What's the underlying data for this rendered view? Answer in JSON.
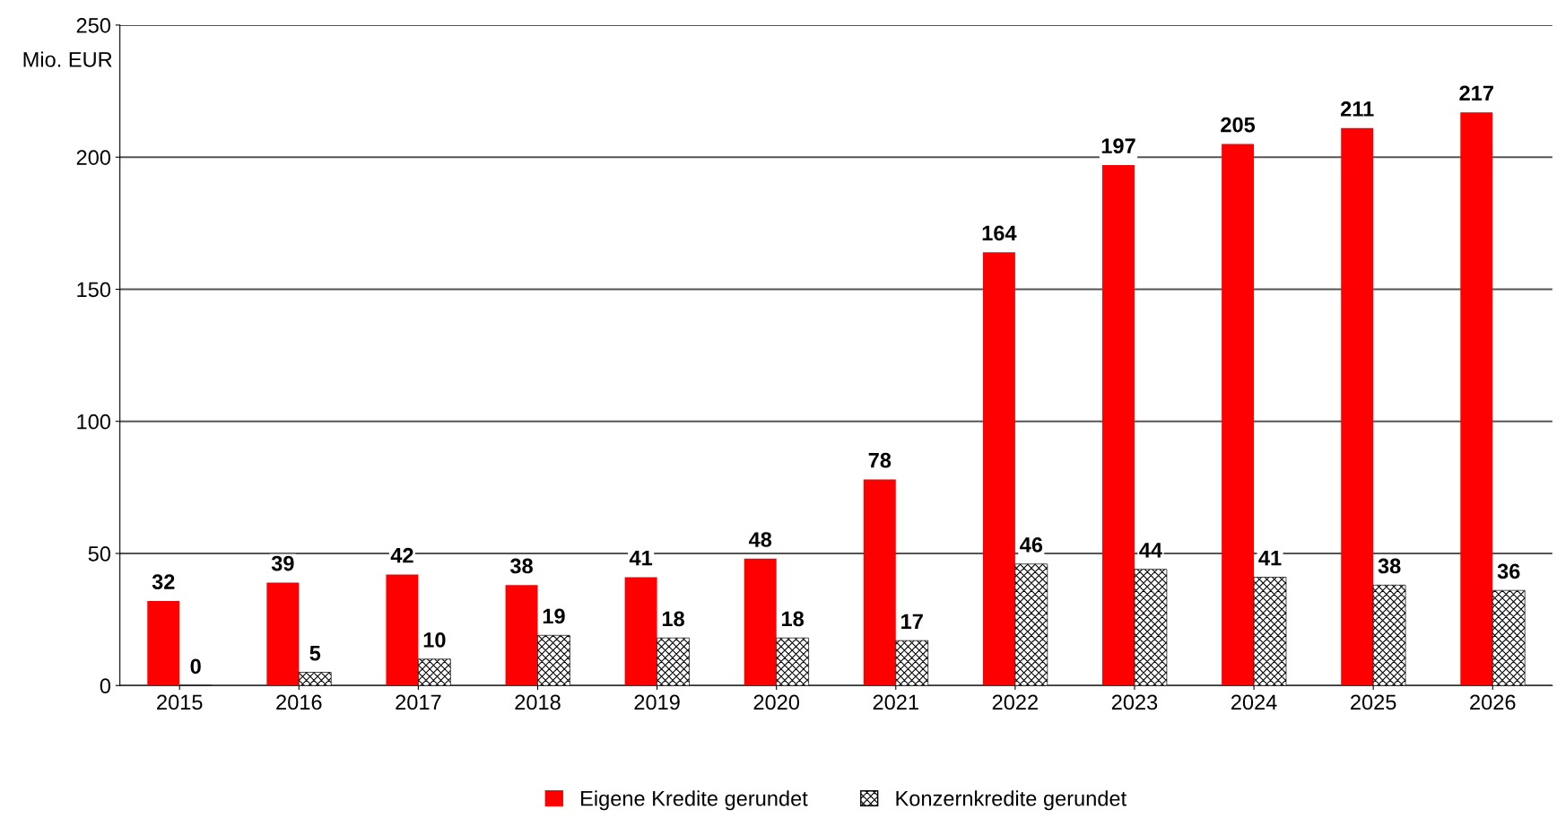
{
  "chart_data": {
    "type": "bar",
    "ylabel": "Mio. EUR",
    "categories": [
      "2015",
      "2016",
      "2017",
      "2018",
      "2019",
      "2020",
      "2021",
      "2022",
      "2023",
      "2024",
      "2025",
      "2026"
    ],
    "series": [
      {
        "name": "Eigene Kredite gerundet",
        "color": "#ff0000",
        "values": [
          32,
          39,
          42,
          38,
          41,
          48,
          78,
          164,
          197,
          205,
          211,
          217
        ]
      },
      {
        "name": "Konzernkredite gerundet",
        "color": "#000000",
        "values": [
          0,
          5,
          10,
          19,
          18,
          18,
          17,
          46,
          44,
          41,
          38,
          36
        ]
      }
    ],
    "ylim": [
      0,
      250
    ],
    "yticks": [
      0,
      50,
      100,
      150,
      200,
      250
    ],
    "grid": "y",
    "legend": "bottom",
    "data_labels": true
  }
}
